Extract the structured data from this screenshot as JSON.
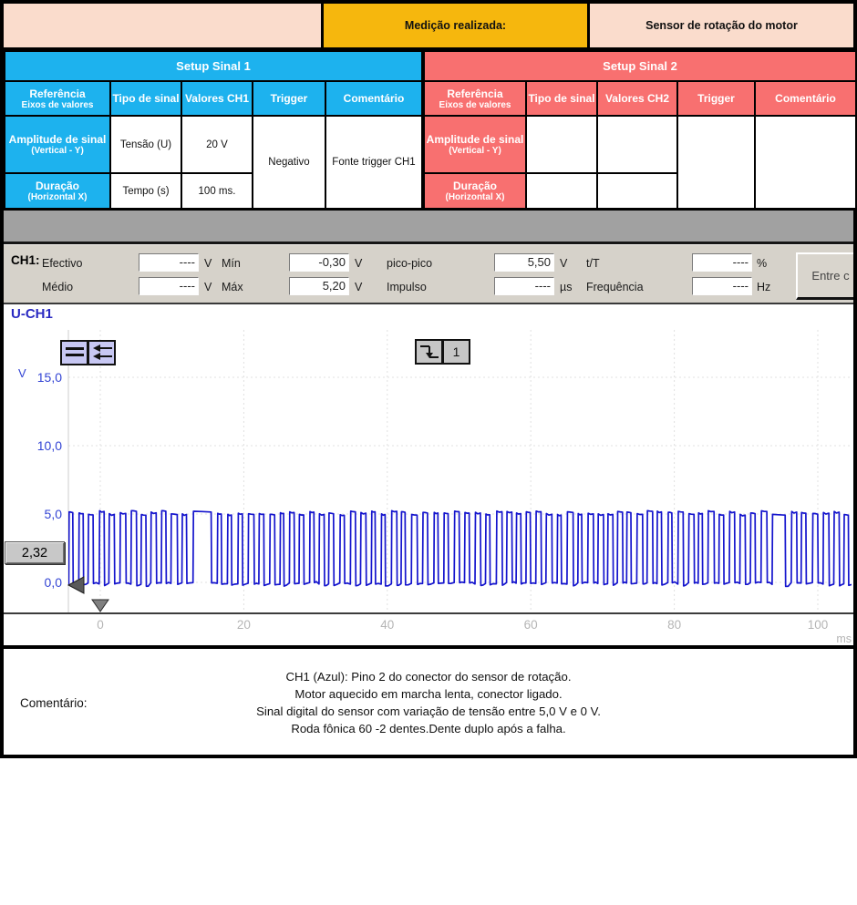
{
  "header": {
    "measured_label": "Medição realizada:",
    "measured_value": "Sensor de rotação do motor"
  },
  "setup_tables": [
    {
      "title": "Setup Sinal 1",
      "headers": {
        "ref": "Referência",
        "ref_sub": "Eixos de valores",
        "tipo": "Tipo de sinal",
        "valores": "Valores CH1",
        "trigger": "Trigger",
        "comentario": "Comentário"
      },
      "rows": [
        {
          "ref": "Amplitude de sinal",
          "ref_sub": "(Vertical - Y)",
          "tipo": "Tensão (U)",
          "valor": "20 V"
        },
        {
          "ref": "Duração",
          "ref_sub": "(Horizontal X)",
          "tipo": "Tempo (s)",
          "valor": "100 ms."
        }
      ],
      "trigger_value": "Negativo",
      "comentario_value": "Fonte trigger CH1"
    },
    {
      "title": "Setup Sinal 2",
      "headers": {
        "ref": "Referência",
        "ref_sub": "Eixos de valores",
        "tipo": "Tipo de sinal",
        "valores": "Valores CH2",
        "trigger": "Trigger",
        "comentario": "Comentário"
      },
      "rows": [
        {
          "ref": "Amplitude de sinal",
          "ref_sub": "(Vertical - Y)",
          "tipo": "",
          "valor": ""
        },
        {
          "ref": "Duração",
          "ref_sub": "(Horizontal X)",
          "tipo": "",
          "valor": ""
        }
      ],
      "trigger_value": "",
      "comentario_value": ""
    }
  ],
  "measurements": {
    "channel_label": "CH1:",
    "row1": [
      {
        "label": "Efectivo",
        "value": "----",
        "unit": "V"
      },
      {
        "label": "Mín",
        "value": "-0,30",
        "unit": "V"
      },
      {
        "label": "pico-pico",
        "value": "5,50",
        "unit": "V"
      },
      {
        "label": "t/T",
        "value": "----",
        "unit": "%"
      }
    ],
    "row2": [
      {
        "label": "Médio",
        "value": "----",
        "unit": "V"
      },
      {
        "label": "Máx",
        "value": "5,20",
        "unit": "V"
      },
      {
        "label": "Impulso",
        "value": "----",
        "unit": "µs"
      },
      {
        "label": "Frequência",
        "value": "----",
        "unit": "Hz"
      }
    ],
    "button_label": "Entre c"
  },
  "scope": {
    "trace_label": "U-CH1",
    "y_unit": "V",
    "y_tick_labels": [
      "15,0",
      "10,0",
      "5,0",
      "0,0"
    ],
    "x_tick_labels": [
      "0",
      "20",
      "40",
      "60",
      "80",
      "100"
    ],
    "x_unit": "ms",
    "trigger_level_label": "2,32",
    "trigger_channel_label": "1"
  },
  "chart_data": {
    "type": "line",
    "title": "U-CH1",
    "xlabel": "ms",
    "ylabel": "V",
    "xlim": [
      -4.4,
      104.6
    ],
    "ylim": [
      -2.3,
      17.6
    ],
    "x_ticks": [
      0,
      20,
      40,
      60,
      80,
      100
    ],
    "y_ticks": [
      0,
      5,
      10,
      15
    ],
    "grid": true,
    "legend": "none",
    "signal": {
      "kind": "crank-sensor-digital-square-wave",
      "high_v": 5.2,
      "low_v": -0.3,
      "tooth_period_ms": 1.38,
      "missing_tooth_gaps_ms": [
        [
          13.2,
          16.3
        ],
        [
          93.2,
          96.3
        ]
      ],
      "trigger_level_v": 2.32,
      "trigger_time_ms": 0
    }
  },
  "comment": {
    "label": "Comentário:",
    "lines": [
      "CH1 (Azul): Pino 2 do conector do sensor de rotação.",
      "Motor aquecido em marcha lenta, conector ligado.",
      "Sinal digital do sensor com variação de tensão entre 5,0 V e 0 V.",
      "Roda fônica 60 -2 dentes.Dente duplo após a falha."
    ]
  },
  "colors": {
    "trace_blue": "#1414cd",
    "axis_label_blue": "#3344d4",
    "x_label_gray": "#b5b5b5",
    "cyan": "#1db2ee",
    "salmon": "#f87070",
    "yellow": "#f6b70d",
    "peach": "#fadccc",
    "panel_gray": "#d6d2ca",
    "band_gray": "#a1a1a1"
  }
}
